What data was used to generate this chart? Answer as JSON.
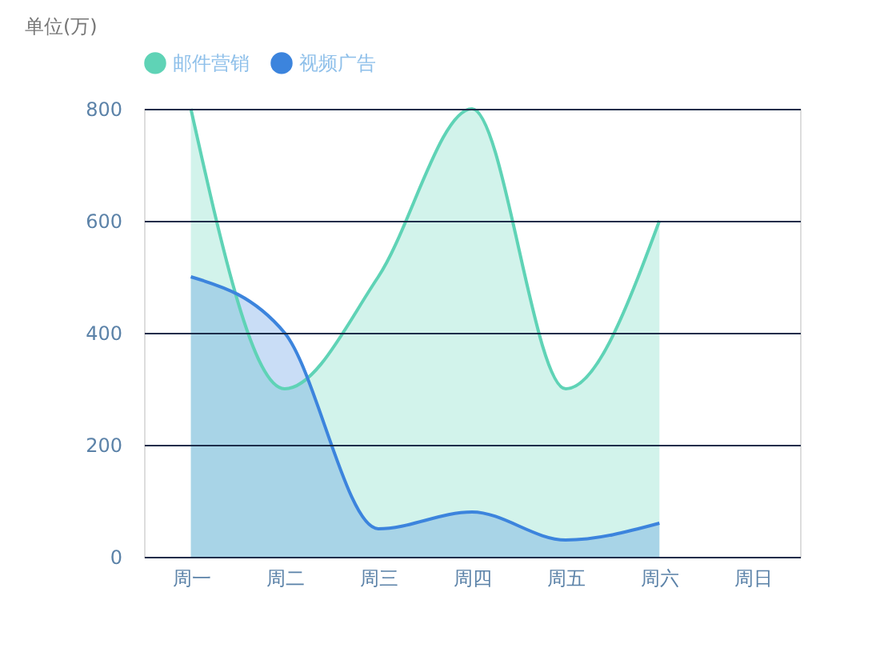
{
  "chart_data": {
    "type": "area",
    "ylabel": "单位(万)",
    "categories": [
      "周一",
      "周二",
      "周三",
      "周四",
      "周五",
      "周六",
      "周日"
    ],
    "series": [
      {
        "name": "邮件营销",
        "color": "#5fd3b6",
        "values": [
          800,
          300,
          500,
          800,
          300,
          600,
          null
        ]
      },
      {
        "name": "视频广告",
        "color": "#3c84dd",
        "values": [
          500,
          400,
          50,
          80,
          30,
          60,
          null
        ]
      }
    ],
    "ylim": [
      0,
      800
    ],
    "yticks": [
      0,
      200,
      400,
      600,
      800
    ],
    "grid": "y",
    "legend": "top",
    "marker": "none",
    "line_style": "solid"
  }
}
